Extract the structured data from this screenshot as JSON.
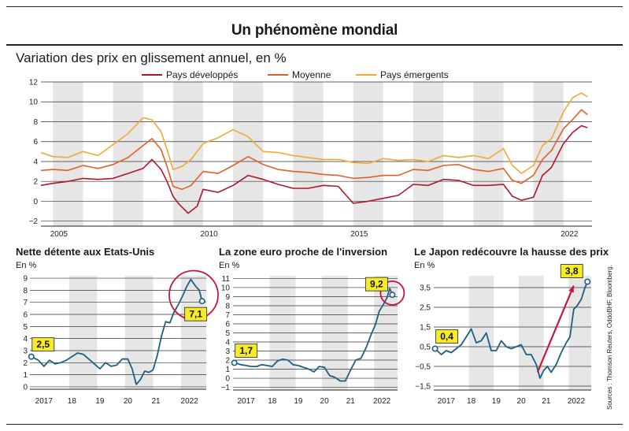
{
  "header": {
    "title": "Un phénomène mondial",
    "subtitle": "Variation des prix en glissement annuel, en %"
  },
  "source": "Sources : Thomson Reuters, OddoBHF, Bloomberg.",
  "colors": {
    "developpes": "#b0162e",
    "moyenne": "#e0602a",
    "emergents": "#efaa33",
    "panel_line": "#1d5f82",
    "highlight_circle": "#c8163a",
    "callout_bg": "#f7ea26",
    "arrow": "#c8163a",
    "shade": "#e6e6e6"
  },
  "chart_data": [
    {
      "id": "world",
      "type": "line",
      "title": "Un phénomène mondial",
      "subtitle": "Variation des prix en glissement annuel, en %",
      "x_range": [
        2004.6,
        2022.95
      ],
      "ylim": [
        -2.5,
        12
      ],
      "y_ticks": [
        -2,
        0,
        2,
        4,
        6,
        8,
        10,
        12
      ],
      "y_tick_labels": [
        "−2",
        "0",
        "2",
        "4",
        "6",
        "8",
        "10",
        "12"
      ],
      "x_tick_labels": [
        {
          "x": 2005.2,
          "label": "2005"
        },
        {
          "x": 2010.2,
          "label": "2010"
        },
        {
          "x": 2015.2,
          "label": "2015"
        },
        {
          "x": 2022.2,
          "label": "2022"
        }
      ],
      "shaded_years": [
        2005,
        2007,
        2009,
        2011,
        2013,
        2015,
        2017,
        2019,
        2021
      ],
      "grid": "horizontal",
      "legend_position": "top-center",
      "series": [
        {
          "name": "Pays développés",
          "color_key": "developpes",
          "x": [
            2004.6,
            2005,
            2005.5,
            2006,
            2006.5,
            2007,
            2007.5,
            2008,
            2008.3,
            2008.6,
            2008.8,
            2009,
            2009.2,
            2009.5,
            2009.8,
            2010,
            2010.5,
            2011,
            2011.5,
            2012,
            2012.5,
            2013,
            2013.5,
            2014,
            2014.5,
            2015,
            2015.5,
            2016,
            2016.5,
            2017,
            2017.5,
            2018,
            2018.5,
            2019,
            2019.5,
            2020,
            2020.3,
            2020.6,
            2021,
            2021.3,
            2021.6,
            2022,
            2022.3,
            2022.6,
            2022.8
          ],
          "y": [
            1.6,
            1.8,
            2,
            2.3,
            2.2,
            2.3,
            2.8,
            3.3,
            4.2,
            3.2,
            2,
            0.5,
            -0.3,
            -1.2,
            -0.5,
            1.2,
            0.9,
            1.6,
            2.6,
            2.2,
            1.7,
            1.3,
            1.3,
            1.6,
            1.5,
            -0.2,
            0,
            0.3,
            0.6,
            1.7,
            1.6,
            2.2,
            2.1,
            1.6,
            1.6,
            1.7,
            0.5,
            0.1,
            0.4,
            2.6,
            3.4,
            5.8,
            6.9,
            7.6,
            7.4
          ]
        },
        {
          "name": "Moyenne",
          "color_key": "moyenne",
          "x": [
            2004.6,
            2005,
            2005.5,
            2006,
            2006.5,
            2007,
            2007.5,
            2008,
            2008.3,
            2008.6,
            2008.8,
            2009,
            2009.3,
            2009.6,
            2010,
            2010.5,
            2011,
            2011.5,
            2012,
            2012.5,
            2013,
            2013.5,
            2014,
            2014.5,
            2015,
            2015.5,
            2016,
            2016.5,
            2017,
            2017.5,
            2018,
            2018.5,
            2019,
            2019.5,
            2020,
            2020.3,
            2020.6,
            2021,
            2021.3,
            2021.6,
            2022,
            2022.3,
            2022.6,
            2022.8
          ],
          "y": [
            3.1,
            3.2,
            3.1,
            3.6,
            3.3,
            3.7,
            4.4,
            5.6,
            6.3,
            5.2,
            3.5,
            1.5,
            1.2,
            1.6,
            3,
            2.8,
            3.6,
            4.5,
            3.7,
            3.2,
            3,
            2.9,
            2.7,
            2.6,
            2.3,
            2.4,
            2.6,
            2.6,
            3.2,
            3.1,
            3.6,
            3.7,
            3.2,
            3,
            3.3,
            2.1,
            1.8,
            2.6,
            4.2,
            5.1,
            7.3,
            8.2,
            9.2,
            8.7
          ]
        },
        {
          "name": "Pays émergents",
          "color_key": "emergents",
          "x": [
            2004.6,
            2005,
            2005.5,
            2006,
            2006.5,
            2007,
            2007.5,
            2008,
            2008.3,
            2008.6,
            2008.8,
            2009,
            2009.3,
            2009.6,
            2010,
            2010.5,
            2011,
            2011.5,
            2012,
            2012.5,
            2013,
            2013.5,
            2014,
            2014.5,
            2015,
            2015.5,
            2016,
            2016.5,
            2017,
            2017.5,
            2018,
            2018.5,
            2019,
            2019.5,
            2020,
            2020.3,
            2020.6,
            2021,
            2021.3,
            2021.6,
            2022,
            2022.3,
            2022.6,
            2022.8
          ],
          "y": [
            4.9,
            4.5,
            4.4,
            5,
            4.6,
            5.7,
            6.8,
            8.4,
            8.2,
            7,
            5.2,
            3.2,
            3.5,
            4.2,
            5.8,
            6.4,
            7.2,
            6.5,
            5,
            4.9,
            4.6,
            4.4,
            4.2,
            4.2,
            3.9,
            3.8,
            4.3,
            4.1,
            4.2,
            4,
            4.6,
            4.4,
            4.6,
            4.3,
            5.3,
            3.6,
            2.8,
            3.6,
            5.6,
            6.3,
            9,
            10.4,
            10.9,
            10.5
          ]
        }
      ]
    },
    {
      "id": "us",
      "type": "line",
      "title": "Nette détente aux Etats-Unis",
      "unit": "En %",
      "x_range": [
        2016.6,
        2022.9
      ],
      "ylim": [
        -0.2,
        9.2
      ],
      "y_ticks": [
        0,
        1,
        2,
        3,
        4,
        5,
        6,
        7,
        8,
        9
      ],
      "x_tick_labels": [
        {
          "x": 2017.1,
          "label": "2017"
        },
        {
          "x": 2018.1,
          "label": "18"
        },
        {
          "x": 2019.1,
          "label": "19"
        },
        {
          "x": 2020.1,
          "label": "20"
        },
        {
          "x": 2021.1,
          "label": "21"
        },
        {
          "x": 2022.3,
          "label": "2022"
        }
      ],
      "shaded_years": [
        2018,
        2020,
        2022
      ],
      "callouts": [
        {
          "label": "2,5",
          "x": 2016.65,
          "y": 2.5,
          "side": "left"
        },
        {
          "label": "7,1",
          "x": 2022.75,
          "y": 7.1,
          "side": "below"
        }
      ],
      "highlight_circle_at": {
        "x": 2022.45,
        "y": 7.6
      },
      "series": [
        {
          "name": "",
          "color_key": "panel_line",
          "x": [
            2016.65,
            2016.9,
            2017.1,
            2017.3,
            2017.5,
            2017.7,
            2017.9,
            2018.1,
            2018.3,
            2018.5,
            2018.7,
            2018.9,
            2019.1,
            2019.3,
            2019.5,
            2019.7,
            2019.9,
            2020.1,
            2020.25,
            2020.4,
            2020.55,
            2020.7,
            2020.85,
            2021.0,
            2021.15,
            2021.3,
            2021.45,
            2021.6,
            2021.75,
            2021.9,
            2022.05,
            2022.2,
            2022.35,
            2022.5,
            2022.65,
            2022.75
          ],
          "y": [
            2.5,
            2.2,
            1.7,
            2.2,
            1.9,
            2.0,
            2.2,
            2.5,
            2.8,
            2.7,
            2.3,
            1.9,
            1.5,
            2.0,
            1.7,
            1.8,
            2.3,
            2.3,
            1.5,
            0.2,
            0.6,
            1.3,
            1.2,
            1.4,
            2.6,
            4.2,
            5.4,
            5.3,
            6.2,
            6.8,
            7.5,
            8.3,
            8.9,
            8.4,
            8.0,
            7.1
          ]
        }
      ]
    },
    {
      "id": "eurozone",
      "type": "line",
      "title": "La zone euro proche de l'inversion",
      "unit": "En %",
      "x_range": [
        2016.6,
        2022.9
      ],
      "ylim": [
        -1.3,
        11.3
      ],
      "y_ticks": [
        -1,
        0,
        1,
        2,
        3,
        4,
        5,
        6,
        7,
        8,
        9,
        10,
        11
      ],
      "x_tick_labels": [
        {
          "x": 2017.1,
          "label": "2017"
        },
        {
          "x": 2018.1,
          "label": "18"
        },
        {
          "x": 2019.1,
          "label": "19"
        },
        {
          "x": 2020.1,
          "label": "20"
        },
        {
          "x": 2021.1,
          "label": "21"
        },
        {
          "x": 2022.3,
          "label": "2022"
        }
      ],
      "shaded_years": [
        2018,
        2020,
        2022
      ],
      "callouts": [
        {
          "label": "1,7",
          "x": 2016.65,
          "y": 1.7,
          "side": "left"
        },
        {
          "label": "9,2",
          "x": 2022.7,
          "y": 9.2,
          "side": "left"
        }
      ],
      "highlight_circle_at": {
        "x": 2022.7,
        "y": 9.4
      },
      "series": [
        {
          "name": "",
          "color_key": "panel_line",
          "x": [
            2016.65,
            2016.9,
            2017.1,
            2017.3,
            2017.5,
            2017.7,
            2017.9,
            2018.1,
            2018.3,
            2018.5,
            2018.7,
            2018.9,
            2019.1,
            2019.3,
            2019.5,
            2019.7,
            2019.9,
            2020.1,
            2020.3,
            2020.5,
            2020.7,
            2020.9,
            2021.1,
            2021.3,
            2021.5,
            2021.7,
            2021.9,
            2022.05,
            2022.2,
            2022.35,
            2022.5,
            2022.6,
            2022.7
          ],
          "y": [
            1.7,
            1.5,
            1.4,
            1.3,
            1.3,
            1.5,
            1.4,
            1.3,
            1.9,
            2.1,
            2.0,
            1.5,
            1.4,
            1.2,
            1.0,
            0.7,
            1.3,
            1.2,
            0.3,
            0.1,
            -0.3,
            -0.3,
            0.9,
            2.0,
            2.2,
            3.4,
            4.9,
            5.9,
            7.4,
            8.1,
            8.9,
            9.9,
            9.2
          ]
        }
      ]
    },
    {
      "id": "japan",
      "type": "line",
      "title": "Le Japon redécouvre la hausse des prix",
      "unit": "En %",
      "x_range": [
        2016.6,
        2022.9
      ],
      "ylim": [
        -1.7,
        4.1
      ],
      "y_ticks": [
        -1.5,
        -0.5,
        0.5,
        1.5,
        2.5,
        3.5
      ],
      "y_tick_labels": [
        "−1,5",
        "−0,5",
        "0,5",
        "1,5",
        "2,5",
        "3,5"
      ],
      "x_tick_labels": [
        {
          "x": 2017.1,
          "label": "2017"
        },
        {
          "x": 2018.1,
          "label": "18"
        },
        {
          "x": 2019.1,
          "label": "19"
        },
        {
          "x": 2020.1,
          "label": "20"
        },
        {
          "x": 2021.1,
          "label": "21"
        },
        {
          "x": 2022.3,
          "label": "2022"
        }
      ],
      "shaded_years": [
        2018,
        2020,
        2022
      ],
      "callouts": [
        {
          "label": "0,4",
          "x": 2016.65,
          "y": 0.4,
          "side": "left"
        },
        {
          "label": "3,8",
          "x": 2022.75,
          "y": 3.8,
          "side": "left"
        }
      ],
      "arrow": {
        "from": {
          "x": 2020.75,
          "y": -0.8
        },
        "to": {
          "x": 2022.2,
          "y": 3.6
        }
      },
      "series": [
        {
          "name": "",
          "color_key": "panel_line",
          "x": [
            2016.65,
            2016.9,
            2017.1,
            2017.3,
            2017.5,
            2017.7,
            2017.9,
            2018.1,
            2018.3,
            2018.5,
            2018.7,
            2018.9,
            2019.1,
            2019.3,
            2019.5,
            2019.7,
            2019.9,
            2020.1,
            2020.3,
            2020.5,
            2020.7,
            2020.85,
            2021.0,
            2021.15,
            2021.3,
            2021.5,
            2021.7,
            2021.9,
            2022.05,
            2022.2,
            2022.35,
            2022.5,
            2022.65,
            2022.75
          ],
          "y": [
            0.4,
            0.1,
            0.3,
            0.2,
            0.4,
            0.6,
            1.0,
            1.4,
            0.7,
            0.8,
            1.2,
            0.3,
            0.3,
            0.8,
            0.5,
            0.4,
            0.5,
            0.6,
            0.1,
            0.1,
            -0.4,
            -1.1,
            -0.7,
            -0.5,
            -0.8,
            -0.4,
            0.2,
            0.7,
            1.0,
            2.4,
            2.6,
            2.9,
            3.5,
            3.8
          ]
        }
      ]
    }
  ]
}
